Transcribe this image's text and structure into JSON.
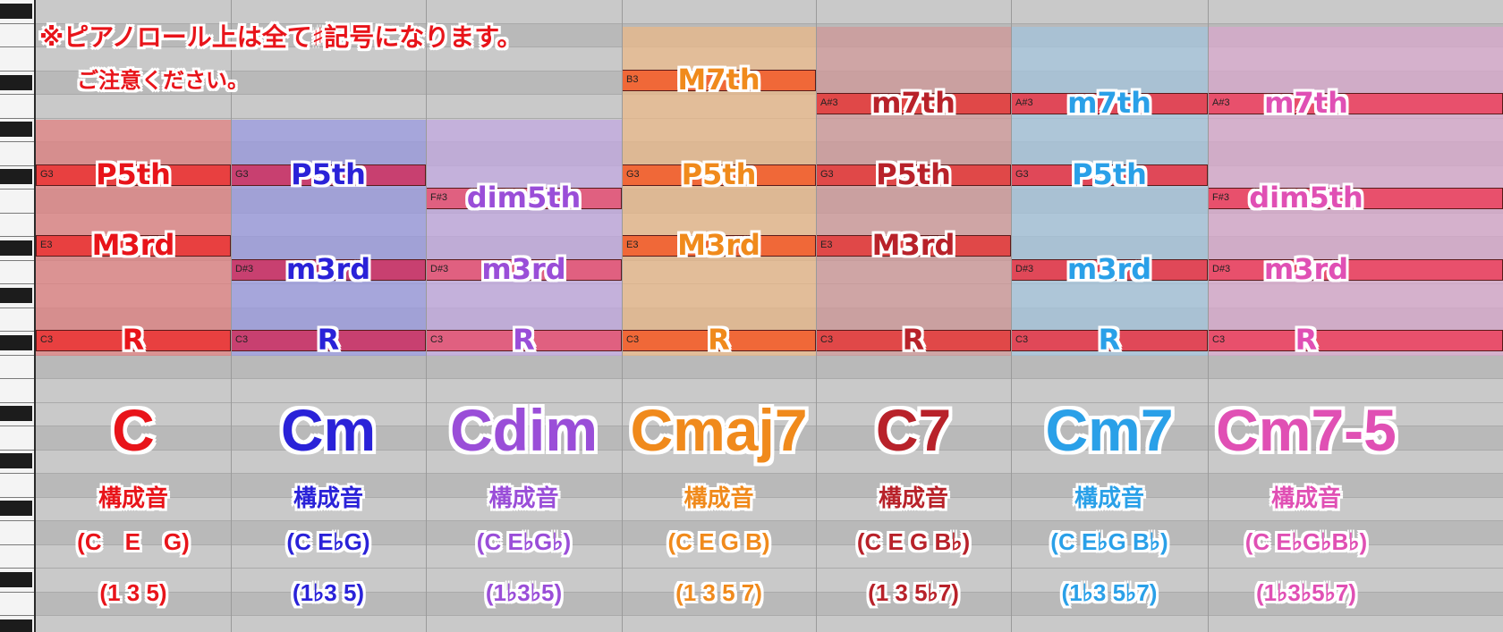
{
  "notice": {
    "line1": "※ピアノロール上は全て♯記号になります。",
    "line2": "ご注意ください。"
  },
  "chords": [
    {
      "name": "C",
      "color": "#e8141a",
      "region_color": "#e08080",
      "note_color": "#e84040",
      "title": "構成音",
      "notes_text": "(C　E　G)",
      "degrees_text": "(1 3 5)",
      "notes": [
        {
          "pitch": "G3",
          "interval": "P5th"
        },
        {
          "pitch": "E3",
          "interval": "M3rd"
        },
        {
          "pitch": "C3",
          "interval": "R"
        }
      ]
    },
    {
      "name": "Cm",
      "color": "#2a22d8",
      "region_color": "#9a9ae0",
      "note_color": "#c84070",
      "title": "構成音",
      "notes_text": "(C E♭G)",
      "degrees_text": "(1♭3 5)",
      "notes": [
        {
          "pitch": "G3",
          "interval": "P5th"
        },
        {
          "pitch": "D#3",
          "interval": "m3rd"
        },
        {
          "pitch": "C3",
          "interval": "R"
        }
      ]
    },
    {
      "name": "Cdim",
      "color": "#9a4ed8",
      "region_color": "#c2a8e0",
      "note_color": "#e06080",
      "title": "構成音",
      "notes_text": "(C E♭G♭)",
      "degrees_text": "(1♭3♭5)",
      "notes": [
        {
          "pitch": "F#3",
          "interval": "dim5th"
        },
        {
          "pitch": "D#3",
          "interval": "m3rd"
        },
        {
          "pitch": "C3",
          "interval": "R"
        }
      ]
    },
    {
      "name": "Cmaj7",
      "color": "#f08a1c",
      "region_color": "#eab888",
      "note_color": "#f06838",
      "title": "構成音",
      "notes_text": "(C E G B)",
      "degrees_text": "(1 3 5 7)",
      "notes": [
        {
          "pitch": "B3",
          "interval": "M7th"
        },
        {
          "pitch": "G3",
          "interval": "P5th"
        },
        {
          "pitch": "E3",
          "interval": "M3rd"
        },
        {
          "pitch": "C3",
          "interval": "R"
        }
      ]
    },
    {
      "name": "C7",
      "color": "#b8222a",
      "region_color": "#d09898",
      "note_color": "#e04848",
      "title": "構成音",
      "notes_text": "(C E G B♭)",
      "degrees_text": "(1 3 5♭7)",
      "notes": [
        {
          "pitch": "A#3",
          "interval": "m7th"
        },
        {
          "pitch": "G3",
          "interval": "P5th"
        },
        {
          "pitch": "E3",
          "interval": "M3rd"
        },
        {
          "pitch": "C3",
          "interval": "R"
        }
      ]
    },
    {
      "name": "Cm7",
      "color": "#2aa0e8",
      "region_color": "#a4c4dc",
      "note_color": "#e04858",
      "title": "構成音",
      "notes_text": "(C E♭G B♭)",
      "degrees_text": "(1♭3 5♭7)",
      "notes": [
        {
          "pitch": "A#3",
          "interval": "m7th"
        },
        {
          "pitch": "G3",
          "interval": "P5th"
        },
        {
          "pitch": "D#3",
          "interval": "m3rd"
        },
        {
          "pitch": "C3",
          "interval": "R"
        }
      ]
    },
    {
      "name": "Cm7-5",
      "color": "#e050b4",
      "region_color": "#d8a8cc",
      "note_color": "#e8506c",
      "title": "構成音",
      "notes_text": "(C E♭G♭B♭)",
      "degrees_text": "(1♭3♭5♭7)",
      "notes": [
        {
          "pitch": "A#3",
          "interval": "m7th"
        },
        {
          "pitch": "F#3",
          "interval": "dim5th"
        },
        {
          "pitch": "D#3",
          "interval": "m3rd"
        },
        {
          "pitch": "C3",
          "interval": "R"
        }
      ]
    }
  ]
}
